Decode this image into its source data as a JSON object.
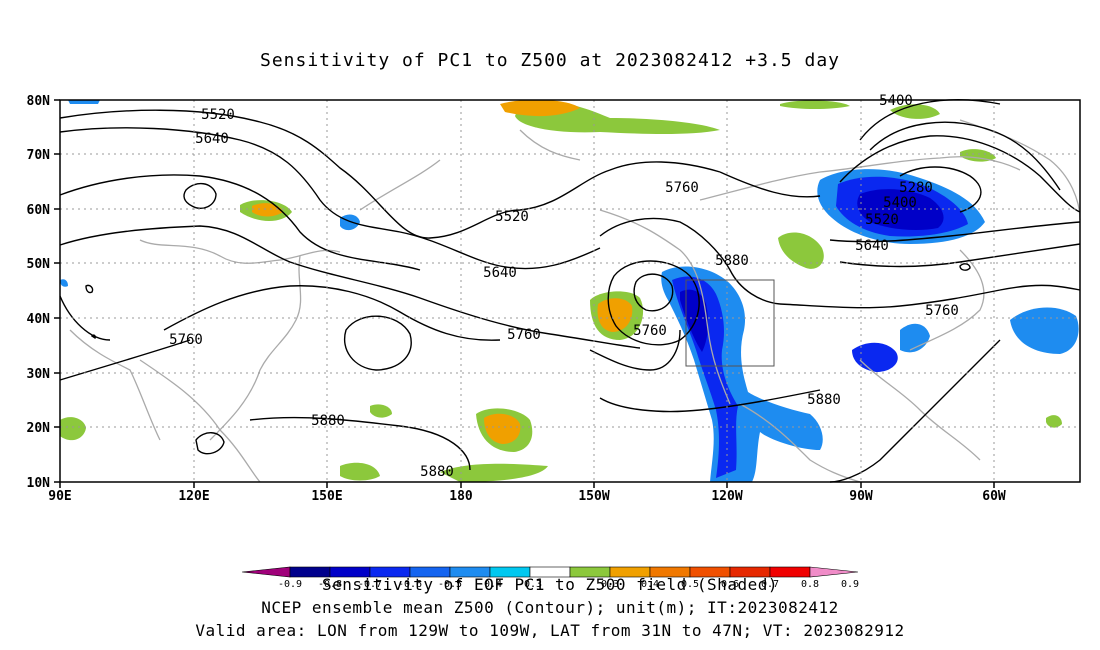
{
  "title": "Sensitivity of PC1 to Z500 at 2023082412 +3.5 day",
  "lat_labels": [
    "80N",
    "70N",
    "60N",
    "50N",
    "40N",
    "30N",
    "20N",
    "10N"
  ],
  "lon_labels": [
    "90E",
    "120E",
    "150E",
    "180",
    "150W",
    "120W",
    "90W",
    "60W"
  ],
  "contour_labels": [
    {
      "text": "5520",
      "pos": "upper-left"
    },
    {
      "text": "5640",
      "pos": "upper-left"
    },
    {
      "text": "5520",
      "pos": "center"
    },
    {
      "text": "5760",
      "pos": "center"
    },
    {
      "text": "5400",
      "pos": "top-right"
    },
    {
      "text": "5280",
      "pos": "right-low"
    },
    {
      "text": "5400",
      "pos": "right-low"
    },
    {
      "text": "5520",
      "pos": "right-low"
    },
    {
      "text": "5640",
      "pos": "right"
    },
    {
      "text": "5880",
      "pos": "center-right"
    },
    {
      "text": "5640",
      "pos": "center"
    },
    {
      "text": "5760",
      "pos": "center"
    },
    {
      "text": "5760",
      "pos": "center-low"
    },
    {
      "text": "5760",
      "pos": "right"
    },
    {
      "text": "5760",
      "pos": "left"
    },
    {
      "text": "5880",
      "pos": "lower-left"
    },
    {
      "text": "5880",
      "pos": "bottom"
    },
    {
      "text": "5880",
      "pos": "lower-right"
    }
  ],
  "colorbar": {
    "ticks": [
      "-0.9",
      "-0.8",
      "-0.7",
      "-0.6",
      "-0.5",
      "-0.4",
      "-0.3",
      "0.3",
      "0.4",
      "0.5",
      "0.6",
      "0.7",
      "0.8",
      "0.9"
    ],
    "colors": [
      "#a0007a",
      "#00008c",
      "#0000c8",
      "#0a28f0",
      "#1464f0",
      "#1e8cf0",
      "#00c8f0",
      "#ffffff",
      "#8cc83c",
      "#f0a000",
      "#f07800",
      "#f05000",
      "#e62800",
      "#f00000",
      "#f08cc8"
    ]
  },
  "caption_lines": [
    "Sensitivity of EOF PC1 to Z500 field (Shaded)",
    "NCEP ensemble mean Z500 (Contour); unit(m); IT:2023082412",
    "Valid area: LON from 129W to 109W, LAT from 31N to 47N; VT: 2023082912"
  ],
  "valid_area": {
    "lon_min": -129,
    "lon_max": -109,
    "lat_min": 31,
    "lat_max": 47
  }
}
